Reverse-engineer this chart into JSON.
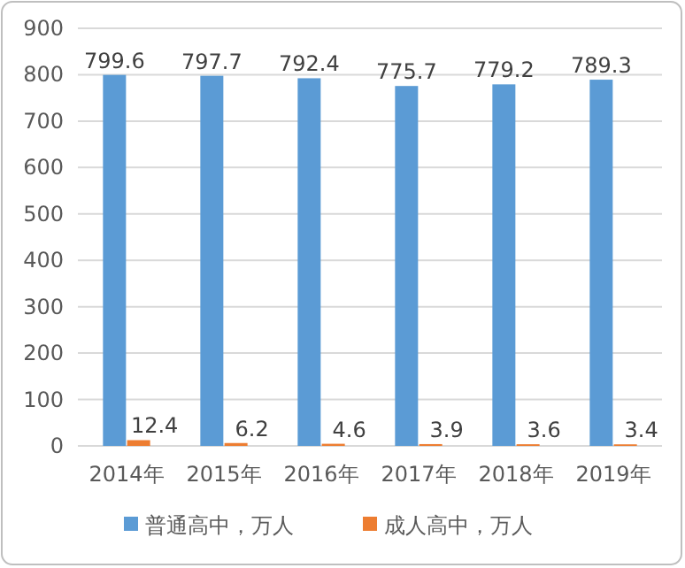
{
  "chart_data": {
    "type": "bar",
    "categories": [
      "2014年",
      "2015年",
      "2016年",
      "2017年",
      "2018年",
      "2019年"
    ],
    "series": [
      {
        "name": "普通高中，万人",
        "color": "#5b9bd5",
        "values": [
          799.6,
          797.7,
          792.4,
          775.7,
          779.2,
          789.3
        ]
      },
      {
        "name": "成人高中，万人",
        "color": "#ed7d31",
        "values": [
          12.4,
          6.2,
          4.6,
          3.9,
          3.6,
          3.4
        ]
      }
    ],
    "ylim": [
      0,
      900
    ],
    "yticks": [
      0,
      100,
      200,
      300,
      400,
      500,
      600,
      700,
      800,
      900
    ],
    "grid": "y",
    "legend": "bottom",
    "data_labels": true
  }
}
